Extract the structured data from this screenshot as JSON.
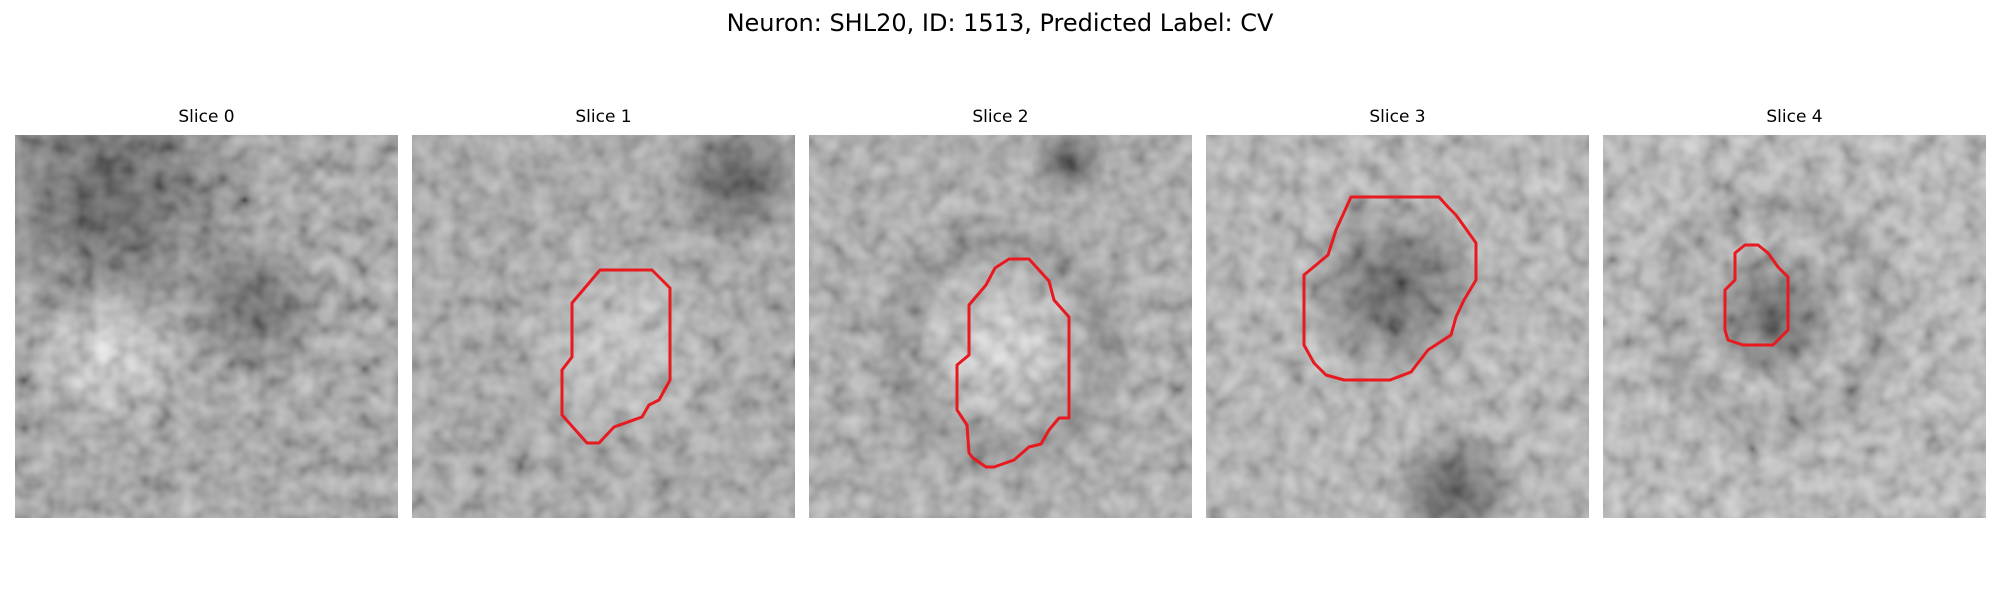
{
  "figure": {
    "title": "Neuron: SHL20, ID: 1513, Predicted Label: CV"
  },
  "outline_color": "#e8191f",
  "panels": [
    {
      "title": "Slice 0",
      "has_outline": false
    },
    {
      "title": "Slice 1",
      "has_outline": true
    },
    {
      "title": "Slice 2",
      "has_outline": true
    },
    {
      "title": "Slice 3",
      "has_outline": true
    },
    {
      "title": "Slice 4",
      "has_outline": true
    }
  ]
}
